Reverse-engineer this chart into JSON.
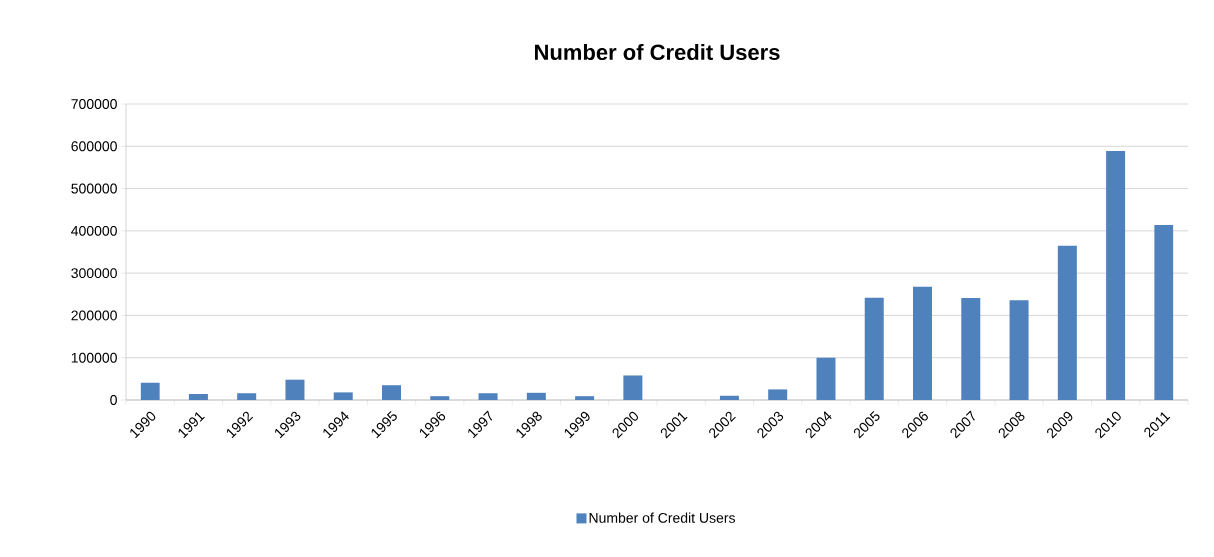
{
  "chart_data": {
    "type": "bar",
    "title": "Number of Credit Users",
    "categories": [
      "1990",
      "1991",
      "1992",
      "1993",
      "1994",
      "1995",
      "1996",
      "1997",
      "1998",
      "1999",
      "2000",
      "2001",
      "2002",
      "2003",
      "2004",
      "2005",
      "2006",
      "2007",
      "2008",
      "2009",
      "2010",
      "2011"
    ],
    "series": [
      {
        "name": "Number of Credit Users",
        "color": "#4f81bd",
        "values": [
          41000,
          14000,
          16000,
          48000,
          18000,
          35000,
          9000,
          16000,
          17000,
          9000,
          58000,
          0,
          10000,
          25000,
          100000,
          242000,
          268000,
          241000,
          236000,
          365000,
          589000,
          414000
        ]
      }
    ],
    "ylim": [
      0,
      700000
    ],
    "yticks": [
      0,
      100000,
      200000,
      300000,
      400000,
      500000,
      600000,
      700000
    ],
    "grid": "y",
    "legend": "bottom"
  }
}
